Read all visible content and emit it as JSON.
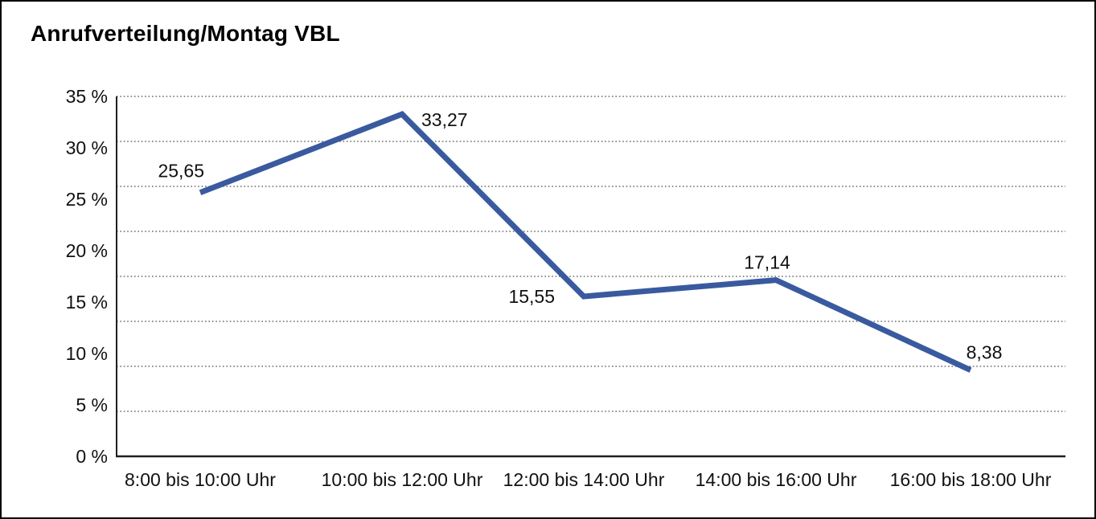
{
  "page": {
    "background": "#ffffff",
    "border_color": "#000000"
  },
  "chart_data": {
    "type": "line",
    "title": "Anrufverteilung/Montag VBL",
    "categories": [
      "8:00 bis 10:00 Uhr",
      "10:00 bis 12:00 Uhr",
      "12:00 bis 14:00 Uhr",
      "14:00 bis 16:00 Uhr",
      "16:00 bis 18:00 Uhr"
    ],
    "series": [
      {
        "color": "#3a5a9f",
        "values": [
          25.65,
          33.27,
          15.55,
          17.14,
          8.38
        ],
        "value_labels": [
          "25,65",
          "33,27",
          "15,55",
          "17,14",
          "8,38"
        ]
      }
    ],
    "xlabel": "",
    "ylabel": "",
    "ylim": [
      0,
      35
    ],
    "y_ticks": {
      "values": [
        35,
        30,
        25,
        20,
        15,
        10,
        5,
        0
      ],
      "labels": [
        "35 %",
        "30 %",
        "25 %",
        "20 %",
        "15 %",
        "10 %",
        "5 %",
        "0 %"
      ]
    },
    "grid": {
      "visible": true,
      "style": "dotted",
      "color": "#4d4d4d",
      "horizontal_intervals": 8
    },
    "legend": {
      "visible": false
    },
    "axis_color": "#1f1f1f",
    "text_color": "#111111"
  }
}
